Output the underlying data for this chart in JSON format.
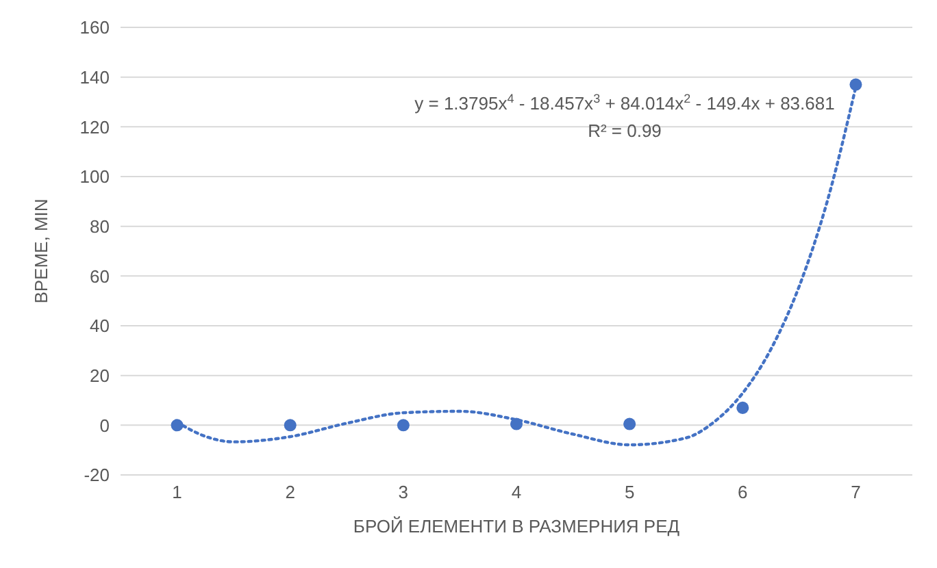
{
  "chart_data": {
    "type": "scatter",
    "xlabel": "БРОЙ ЕЛЕМЕНТИ В РАЗМЕРНИЯ РЕД",
    "ylabel": "ВРЕМЕ, MIN",
    "x": [
      1,
      2,
      3,
      4,
      5,
      6,
      7
    ],
    "series": [
      {
        "color": "#4472c4",
        "values": [
          0,
          0,
          0,
          0.5,
          0.5,
          7,
          137
        ],
        "marker": "circle"
      },
      {
        "type": "line",
        "color": "#4472c4",
        "line_style": "dotted",
        "marker": "none",
        "x": [
          1,
          1.25,
          1.5,
          2,
          2.5,
          3,
          3.5,
          4,
          4.5,
          5,
          5.5,
          5.75,
          6,
          6.25,
          6.5,
          6.75,
          7
        ],
        "values": [
          1.2,
          -4.5,
          -6.7,
          -4.6,
          0.8,
          5,
          5.6,
          2.2,
          -3.6,
          -7.9,
          -5.1,
          1.4,
          12.9,
          30.6,
          55.9,
          90.4,
          136
        ]
      }
    ],
    "xlim": [
      0.5,
      7.5
    ],
    "xticks": [
      1,
      2,
      3,
      4,
      5,
      6,
      7
    ],
    "ylim": [
      -20,
      160
    ],
    "yticks": [
      -20,
      0,
      20,
      40,
      60,
      80,
      100,
      120,
      140,
      160
    ],
    "grid": "y",
    "legend": false,
    "annotations": [
      "y = 1.3795x$^{4}$ - 18.457x$^{3}$ + 84.014x$^{2}$ - 149.4x + 83.681",
      "R² = 0.99"
    ]
  }
}
